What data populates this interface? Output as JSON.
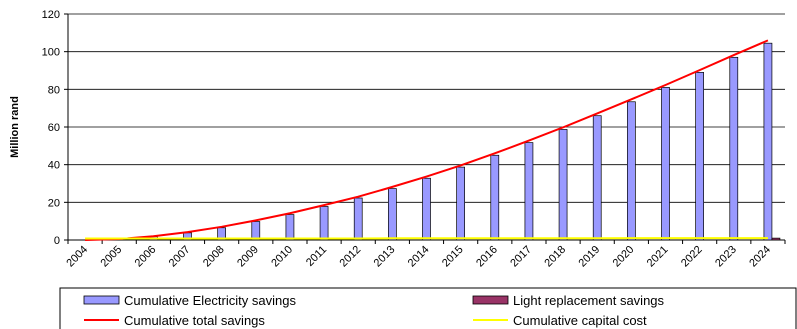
{
  "chart_data": {
    "type": "bar",
    "ylabel": "Million rand",
    "xlabel": "",
    "ylim": [
      0,
      120
    ],
    "yticks": [
      0,
      20,
      40,
      60,
      80,
      100,
      120
    ],
    "grid": true,
    "legend_position": "bottom",
    "categories": [
      "2004",
      "2005",
      "2006",
      "2007",
      "2008",
      "2009",
      "2010",
      "2011",
      "2012",
      "2013",
      "2014",
      "2015",
      "2016",
      "2017",
      "2018",
      "2019",
      "2020",
      "2021",
      "2022",
      "2023",
      "2024"
    ],
    "series": [
      {
        "name": "Cumulative Electricity savings",
        "kind": "bar",
        "color": "#9999ff",
        "values": [
          0,
          0.5,
          1.8,
          3.8,
          6.5,
          9.8,
          13.5,
          17.8,
          22.3,
          27.3,
          32.8,
          38.7,
          45,
          51.7,
          58.7,
          66,
          73.4,
          81,
          89,
          97,
          104.5
        ]
      },
      {
        "name": "Light replacement savings",
        "kind": "bar",
        "color": "#993366",
        "values": [
          0,
          0,
          0,
          0,
          0,
          0,
          0,
          0,
          0,
          0,
          0,
          0,
          0,
          0,
          0,
          0,
          0,
          0,
          0,
          0,
          1
        ]
      },
      {
        "name": "Cumulative total savings",
        "kind": "line",
        "color": "#ff0000",
        "values": [
          0,
          0.5,
          2,
          4.2,
          7,
          10.4,
          14.2,
          18.5,
          23,
          28.2,
          33.7,
          39.6,
          46,
          52.8,
          59.8,
          67.2,
          74.7,
          82.3,
          90.2,
          98.2,
          106
        ]
      },
      {
        "name": "Cumulative capital cost",
        "kind": "line",
        "color": "#ffff00",
        "values": [
          0.8,
          0.8,
          0.8,
          0.8,
          0.8,
          0.8,
          0.8,
          0.8,
          0.8,
          0.9,
          0.9,
          0.9,
          0.9,
          0.9,
          0.9,
          0.9,
          1,
          1,
          1,
          1,
          1
        ]
      }
    ]
  }
}
